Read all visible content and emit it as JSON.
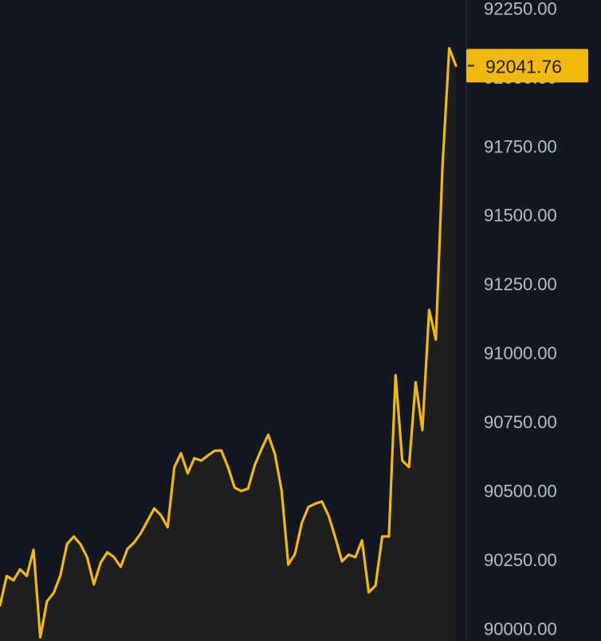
{
  "colors": {
    "background": "#131722",
    "line": "#f0b90b",
    "area_fill": "#1e1e1e",
    "axis_text": "#b7bdc6",
    "price_tag_bg": "#f0b90b",
    "price_tag_text": "#1e2329"
  },
  "chart_data": {
    "type": "area",
    "y_axis_position": "right",
    "ylim": [
      89955,
      92280
    ],
    "ytick_labels": [
      "92250.00",
      "92000.00",
      "91750.00",
      "91500.00",
      "91250.00",
      "91000.00",
      "90750.00",
      "90500.00",
      "90250.00",
      "90000.00"
    ],
    "ytick_values": [
      92250,
      92000,
      91750,
      91500,
      91250,
      91000,
      90750,
      90500,
      90250,
      90000
    ],
    "last_price_label": "92041.76",
    "last_price_value": 92041.76,
    "values": [
      90084,
      90191,
      90175,
      90215,
      90191,
      90286,
      89968,
      90099,
      90129,
      90192,
      90307,
      90334,
      90306,
      90258,
      90160,
      90239,
      90277,
      90259,
      90224,
      90289,
      90312,
      90346,
      90391,
      90436,
      90411,
      90368,
      90585,
      90636,
      90563,
      90618,
      90609,
      90628,
      90645,
      90646,
      90586,
      90511,
      90499,
      90508,
      90593,
      90651,
      90703,
      90633,
      90501,
      90232,
      90271,
      90382,
      90441,
      90453,
      90461,
      90410,
      90331,
      90244,
      90268,
      90259,
      90320,
      90131,
      90156,
      90334,
      90334,
      90919,
      90609,
      90586,
      90894,
      90720,
      91156,
      91048,
      91681,
      92105,
      92041.76
    ]
  }
}
